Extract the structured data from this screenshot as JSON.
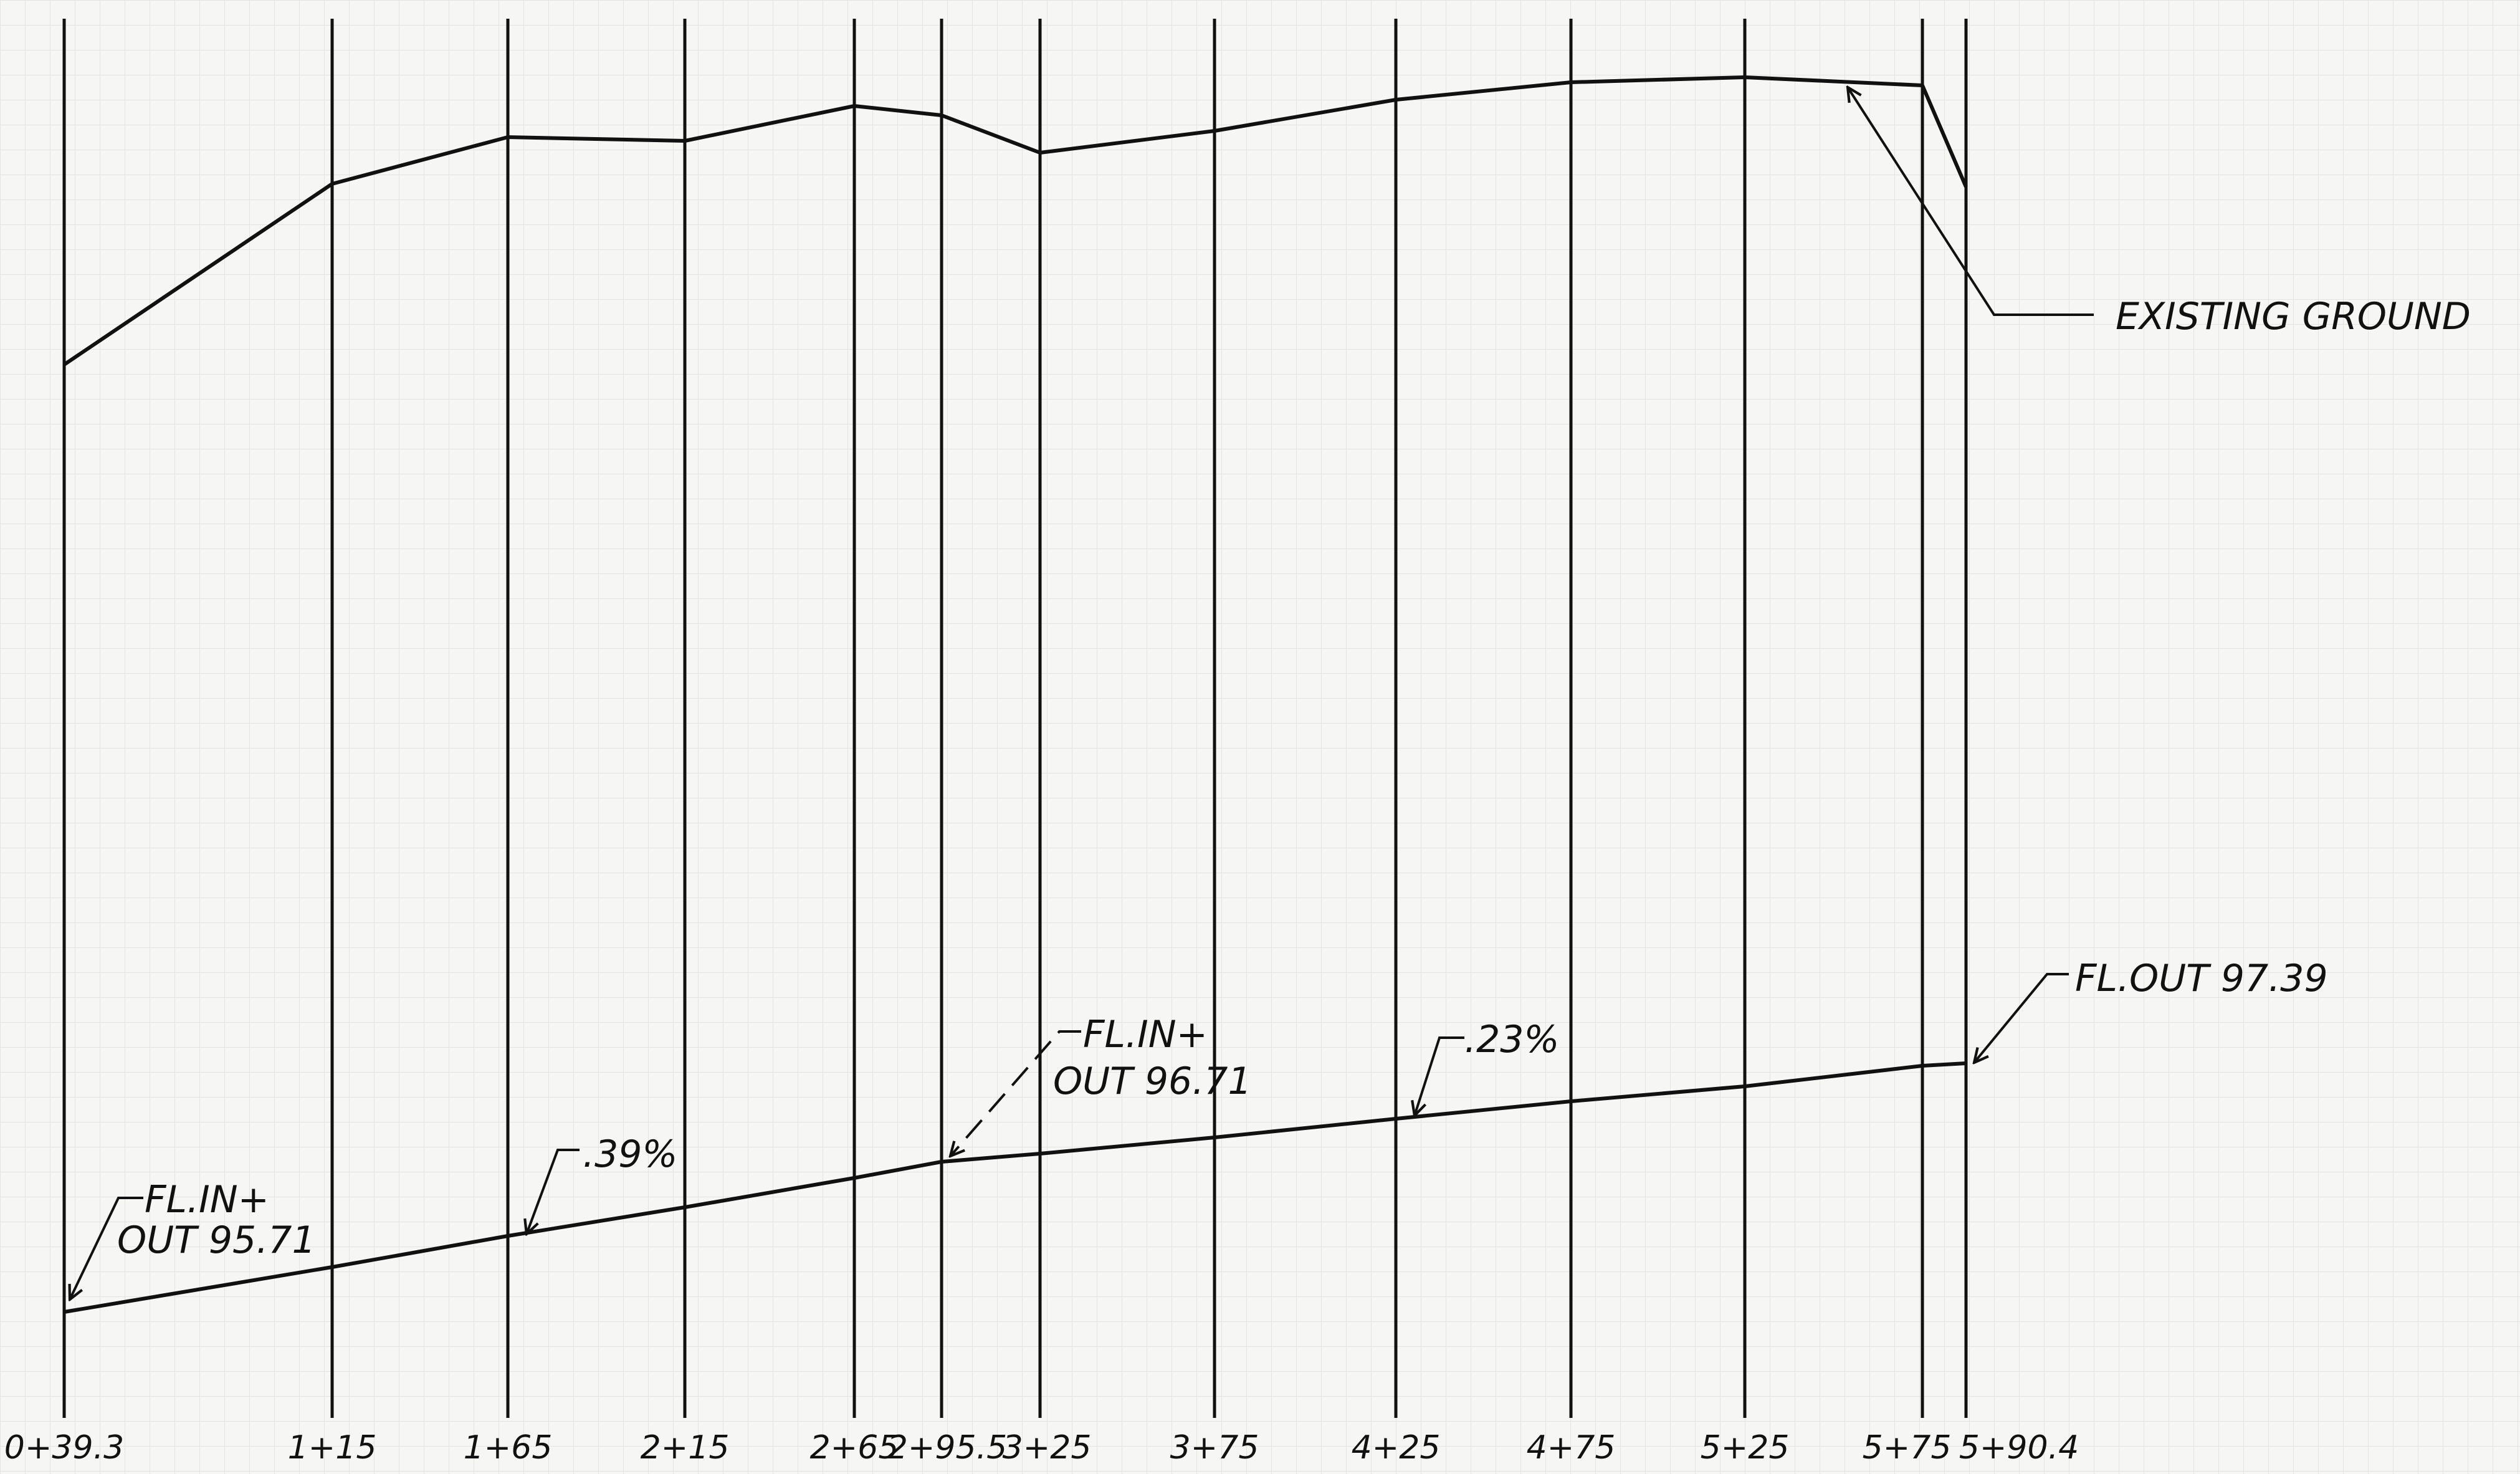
{
  "stations": [
    {
      "label": "0+39.3"
    },
    {
      "label": "1+15"
    },
    {
      "label": "1+65"
    },
    {
      "label": "2+15"
    },
    {
      "label": "2+65"
    },
    {
      "label": "2+95.5"
    },
    {
      "label": "3+25"
    },
    {
      "label": "3+75"
    },
    {
      "label": "4+25"
    },
    {
      "label": "4+75"
    },
    {
      "label": "5+25"
    },
    {
      "label": "5+75"
    },
    {
      "label": "5+90.4"
    }
  ],
  "annotations": {
    "existing_ground": "EXISTING GROUND",
    "fl_start_line1": "FL.IN+",
    "fl_start_line2": "OUT 95.71",
    "slope_1": ".39%",
    "fl_mid_line1": "FL.IN+",
    "fl_mid_line2": "OUT 96.71",
    "slope_2": ".23%",
    "fl_end": "FL.OUT 97.39"
  },
  "colors": {
    "ink": "#111111",
    "paper": "#f6f6f4",
    "grid": "#d9d9d6"
  }
}
